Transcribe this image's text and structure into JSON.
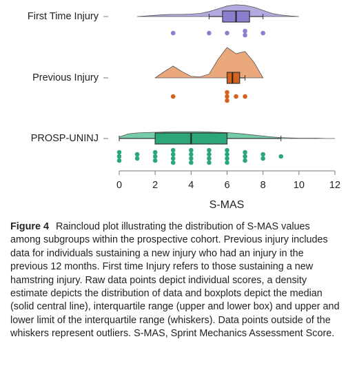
{
  "chart_data": {
    "type": "raincloud",
    "xlabel": "S-MAS",
    "xlim": [
      0,
      12
    ],
    "xticks": [
      0,
      2,
      4,
      6,
      8,
      10,
      12
    ],
    "density_x": [
      0,
      0.5,
      1,
      1.5,
      2,
      2.5,
      3,
      3.5,
      4,
      4.5,
      5,
      5.5,
      6,
      6.5,
      7,
      7.5,
      8,
      8.5,
      9,
      9.5,
      10,
      10.5,
      11,
      11.5,
      12
    ],
    "groups": [
      {
        "name": "First Time Injury",
        "color": "#8a80cf",
        "cloud_color": "#b1abe0",
        "whisker_low": 5,
        "q1": 5.75,
        "median": 6.5,
        "q3": 7.25,
        "whisker_high": 8,
        "points": [
          3,
          5,
          6,
          7,
          7,
          8
        ],
        "density": [
          null,
          null,
          0,
          0.02,
          0.04,
          0.06,
          0.07,
          0.07,
          0.08,
          0.1,
          0.16,
          0.25,
          0.34,
          0.38,
          0.36,
          0.3,
          0.2,
          0.1,
          0.05,
          0.02,
          0,
          null,
          null,
          null,
          null
        ]
      },
      {
        "name": "Previous Injury",
        "color": "#d4631e",
        "cloud_color": "#eba87a",
        "whisker_low": 6,
        "q1": 6,
        "median": 6.3,
        "q3": 6.7,
        "whisker_high": 7,
        "points": [
          3,
          6,
          6,
          6,
          6.5,
          7
        ],
        "density": [
          null,
          null,
          null,
          null,
          0,
          0.2,
          0.38,
          0.2,
          0.05,
          0.03,
          0.12,
          0.6,
          0.98,
          0.78,
          0.85,
          0.5,
          0,
          null,
          null,
          null,
          null,
          null,
          null,
          null,
          null
        ]
      },
      {
        "name": "PROSP-UNINJ",
        "color": "#2ca77a",
        "cloud_color": "#74cda8",
        "whisker_low": 0,
        "q1": 2,
        "median": 4,
        "q3": 6,
        "whisker_high": 9,
        "points": [
          0,
          0,
          0,
          1,
          1,
          2,
          2,
          2,
          3,
          3,
          3,
          3,
          4,
          4,
          4,
          4,
          5,
          5,
          5,
          5,
          6,
          6,
          6,
          6,
          7,
          7,
          7,
          8,
          8,
          9
        ],
        "density": [
          0.05,
          0.15,
          0.18,
          0.19,
          0.2,
          0.21,
          0.22,
          0.22,
          0.22,
          0.22,
          0.21,
          0.2,
          0.19,
          0.17,
          0.14,
          0.11,
          0.08,
          0.05,
          0.03,
          0.02,
          0.01,
          0.01,
          0.01,
          0,
          0
        ]
      }
    ]
  },
  "caption": {
    "label": "Figure 4",
    "text": "Raincloud plot illustrating the distribution of S-MAS values among subgroups within the prospective cohort. Previous injury includes data for individuals sustaining a new injury who had an injury in the previous 12 months. First time Injury refers to those sustaining a new hamstring injury. Raw data points depict individual scores, a density estimate depicts the distribution of data and boxplots depict the median (solid central line), interquartile range (upper and lower box) and upper and lower limit of the interquartile range (whiskers). Data points outside of the whiskers represent outliers. S-MAS, Sprint Mechanics Assessment Score."
  }
}
